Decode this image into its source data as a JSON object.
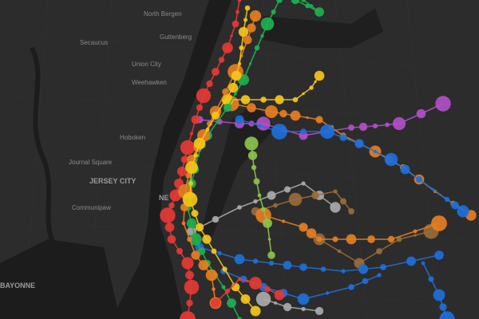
{
  "map": {
    "labels": {
      "north_bergen": "North Bergen",
      "guttenberg": "Guttenberg",
      "secaucus": "Secaucus",
      "union_city": "Union City",
      "weehawken": "Weehawken",
      "hoboken": "Hoboken",
      "journal_square": "Journal Square",
      "jersey_city": "JERSEY CITY",
      "communipaw": "Communipaw",
      "bayonne": "BAYONNE",
      "new_york": "NE"
    }
  }
}
